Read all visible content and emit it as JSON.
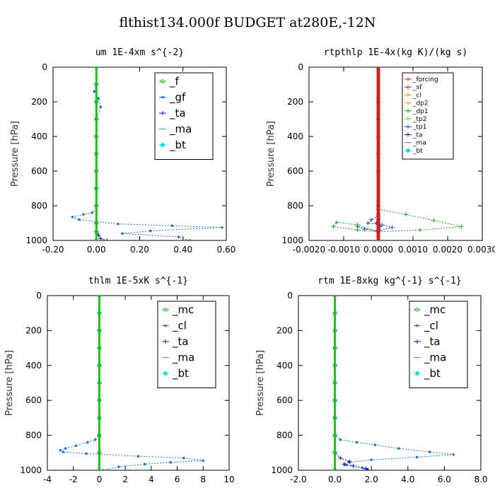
{
  "figure_title": "flthist134.000f  BUDGET at280E,-12N",
  "chart_data": [
    {
      "type": "line",
      "title": "um   1E-4xm s^{-2}",
      "xlabel": "",
      "ylabel": "Pressure [hPa]",
      "xlim": [
        -0.2,
        0.6
      ],
      "ylim": [
        1000,
        0
      ],
      "xticks": [
        "-0.20",
        "0.00",
        "0.20",
        "0.40",
        "0.60"
      ],
      "xtick_values": [
        -0.2,
        0.0,
        0.2,
        0.4,
        0.6
      ],
      "yticks": [
        "0",
        "200",
        "400",
        "600",
        "800",
        "1000"
      ],
      "ytick_values": [
        0,
        200,
        400,
        600,
        800,
        1000
      ],
      "grid": false,
      "legend_position": "top-right",
      "legend_small": false,
      "series": [
        {
          "name": "_f",
          "color": "#22bb22",
          "marker": "circle",
          "x": [
            0,
            0,
            0,
            0,
            0,
            0,
            0,
            0,
            0,
            0,
            0,
            0
          ],
          "y": [
            0,
            100,
            200,
            300,
            400,
            500,
            600,
            700,
            800,
            900,
            950,
            1000
          ]
        },
        {
          "name": "_gf",
          "color": "#2277cc",
          "marker": "dot",
          "x": [
            0,
            0,
            -0.01,
            0.01,
            0.02,
            0.0,
            0,
            0,
            0,
            -0.02,
            -0.06,
            -0.11,
            -0.08,
            0.1,
            0.35,
            0.58,
            0.25,
            0.12,
            0.38,
            0.43
          ],
          "y": [
            0,
            100,
            140,
            180,
            230,
            300,
            500,
            700,
            820,
            840,
            850,
            865,
            880,
            905,
            915,
            925,
            945,
            960,
            980,
            1000
          ]
        },
        {
          "name": "_ta",
          "color": "#1111aa",
          "marker": "plus",
          "x": [
            0,
            0,
            0,
            0,
            0,
            0.01,
            0.02,
            0.05
          ],
          "y": [
            0,
            500,
            800,
            900,
            950,
            970,
            990,
            1000
          ]
        },
        {
          "name": "_ma",
          "color": "#44aacc",
          "marker": "dash",
          "x": [
            0,
            0,
            0,
            0
          ],
          "y": [
            0,
            500,
            900,
            1000
          ]
        },
        {
          "name": "_bt",
          "color": "#00dddd",
          "marker": "diamond",
          "x": [
            0,
            0,
            0,
            0,
            0,
            0,
            0,
            0,
            0,
            0,
            0,
            0
          ],
          "y": [
            0,
            100,
            200,
            300,
            400,
            500,
            600,
            700,
            800,
            900,
            950,
            1000
          ]
        }
      ]
    },
    {
      "type": "line",
      "title": "rtpthlp   1E-4x(kg K)/(kg s)",
      "xlabel": "",
      "ylabel": "Pressure [hPa]",
      "xlim": [
        -0.002,
        0.003
      ],
      "ylim": [
        1000,
        0
      ],
      "xticks": [
        "-0.0020",
        "-0.0010",
        "0.0000",
        "0.0010",
        "0.0020",
        "0.0030"
      ],
      "xtick_values": [
        -0.002,
        -0.001,
        0.0,
        0.001,
        0.002,
        0.003
      ],
      "yticks": [
        "0",
        "200",
        "400",
        "600",
        "800",
        "1000"
      ],
      "ytick_values": [
        0,
        200,
        400,
        600,
        800,
        1000
      ],
      "grid": false,
      "legend_position": "top-right",
      "legend_small": true,
      "series": [
        {
          "name": "_forcing",
          "color": "#cc2222",
          "marker": "plus",
          "x": [
            0,
            0,
            0,
            0,
            0,
            0,
            0,
            0
          ],
          "y": [
            0,
            200,
            400,
            600,
            800,
            900,
            950,
            1000
          ]
        },
        {
          "name": "_sf",
          "color": "#dd2222",
          "marker": "plus",
          "x": [
            0,
            0,
            0,
            0,
            0,
            0
          ],
          "y": [
            0,
            300,
            600,
            850,
            950,
            1000
          ]
        },
        {
          "name": "_cl",
          "color": "#ee9900",
          "marker": "plus",
          "x": [
            0,
            0,
            0,
            0,
            0
          ],
          "y": [
            0,
            400,
            800,
            950,
            1000
          ]
        },
        {
          "name": "_dp2",
          "color": "#ddbb00",
          "marker": "plus",
          "x": [
            0,
            0,
            0,
            0
          ],
          "y": [
            0,
            500,
            900,
            1000
          ]
        },
        {
          "name": "_dp1",
          "color": "#22aa22",
          "marker": "plus",
          "x": [
            0,
            0.0008,
            0.0016,
            0.0024,
            0.0012,
            0,
            -0.0006,
            -0.0012,
            -0.0013,
            -0.0006,
            0
          ],
          "y": [
            820,
            850,
            885,
            920,
            940,
            950,
            910,
            895,
            920,
            940,
            950
          ]
        },
        {
          "name": "_tp2",
          "color": "#66cc33",
          "marker": "plus",
          "x": [
            0,
            0,
            0,
            0
          ],
          "y": [
            0,
            500,
            900,
            1000
          ]
        },
        {
          "name": "_tp1",
          "color": "#2255cc",
          "marker": "plus",
          "x": [
            0,
            -0.0002,
            -0.0003,
            0.0001,
            0.0004,
            0,
            -0.0004,
            -0.0006,
            0
          ],
          "y": [
            860,
            880,
            900,
            910,
            925,
            945,
            935,
            920,
            950
          ]
        },
        {
          "name": "_ta",
          "color": "#1111aa",
          "marker": "plus",
          "x": [
            0,
            -5e-05,
            5e-05,
            0
          ],
          "y": [
            880,
            900,
            920,
            940
          ]
        },
        {
          "name": "_ma",
          "color": "#44aacc",
          "marker": "dash",
          "x": [
            0,
            0,
            0
          ],
          "y": [
            0,
            500,
            1000
          ]
        },
        {
          "name": "_bt",
          "color": "#00dddd",
          "marker": "diamond",
          "x": [
            0,
            0,
            0
          ],
          "y": [
            0,
            500,
            1000
          ]
        }
      ]
    },
    {
      "type": "line",
      "title": "thlm   1E-5xK s^{-1}",
      "xlabel": "",
      "ylabel": "Pressure [hPa]",
      "xlim": [
        -4,
        10
      ],
      "ylim": [
        1000,
        0
      ],
      "xticks": [
        "-4",
        "-2",
        "0",
        "2",
        "4",
        "6",
        "8",
        "10"
      ],
      "xtick_values": [
        -4,
        -2,
        0,
        2,
        4,
        6,
        8,
        10
      ],
      "yticks": [
        "0",
        "200",
        "400",
        "600",
        "800",
        "1000"
      ],
      "ytick_values": [
        0,
        200,
        400,
        600,
        800,
        1000
      ],
      "grid": false,
      "legend_position": "top-right",
      "legend_small": false,
      "series": [
        {
          "name": "_mc",
          "color": "#22bb22",
          "marker": "circle",
          "x": [
            0,
            0,
            0,
            0,
            0,
            0,
            0,
            0,
            0,
            0,
            0
          ],
          "y": [
            0,
            100,
            200,
            300,
            400,
            500,
            600,
            700,
            800,
            900,
            1000
          ]
        },
        {
          "name": "_cl",
          "color": "#2277cc",
          "marker": "dot",
          "x": [
            0,
            0,
            -0.3,
            -0.9,
            -1.8,
            -2.6,
            -3.0,
            -2.8,
            -1.0,
            3.0,
            6.5,
            8.0,
            5.5,
            3.5,
            1.5,
            0.3
          ],
          "y": [
            0,
            800,
            825,
            840,
            860,
            875,
            885,
            895,
            905,
            920,
            930,
            945,
            955,
            965,
            980,
            1000
          ]
        },
        {
          "name": "_ta",
          "color": "#1111aa",
          "marker": "plus",
          "x": [
            0,
            0,
            0,
            0
          ],
          "y": [
            0,
            500,
            900,
            1000
          ]
        },
        {
          "name": "_ma",
          "color": "#44aacc",
          "marker": "dash",
          "x": [
            0,
            0,
            0,
            0
          ],
          "y": [
            0,
            500,
            900,
            1000
          ]
        },
        {
          "name": "_bt",
          "color": "#00dddd",
          "marker": "diamond",
          "x": [
            0,
            0,
            0,
            0,
            0,
            0,
            0,
            0,
            0,
            0,
            0
          ],
          "y": [
            0,
            100,
            200,
            300,
            400,
            500,
            600,
            700,
            800,
            900,
            1000
          ]
        }
      ]
    },
    {
      "type": "line",
      "title": "rtm   1E-8xkg kg^{-1} s^{-1}",
      "xlabel": "",
      "ylabel": "Pressure [hPa]",
      "xlim": [
        -2,
        8
      ],
      "ylim": [
        1000,
        0
      ],
      "xticks": [
        "-2.0",
        "0.0",
        "2.0",
        "4.0",
        "6.0",
        "8.0"
      ],
      "xtick_values": [
        -2,
        0,
        2,
        4,
        6,
        8
      ],
      "yticks": [
        "0",
        "200",
        "400",
        "600",
        "800",
        "1000"
      ],
      "ytick_values": [
        0,
        200,
        400,
        600,
        800,
        1000
      ],
      "grid": false,
      "legend_position": "top-right",
      "legend_small": false,
      "series": [
        {
          "name": "_mc",
          "color": "#22bb22",
          "marker": "circle",
          "x": [
            0,
            0,
            0,
            0,
            0,
            0,
            0,
            0,
            0,
            0,
            0
          ],
          "y": [
            0,
            100,
            200,
            300,
            400,
            500,
            600,
            700,
            800,
            900,
            1000
          ]
        },
        {
          "name": "_cl",
          "color": "#2277cc",
          "marker": "dot",
          "x": [
            0,
            0,
            0.3,
            1.2,
            2.2,
            3.5,
            5.2,
            6.5,
            4.5,
            2.0,
            0.8,
            0.6,
            1.5,
            1.8,
            1.6
          ],
          "y": [
            0,
            800,
            825,
            840,
            855,
            875,
            895,
            910,
            925,
            940,
            955,
            970,
            985,
            995,
            1000
          ]
        },
        {
          "name": "_ta",
          "color": "#1111aa",
          "marker": "plus",
          "x": [
            0,
            0,
            0.3,
            0.8,
            0.5,
            1.0,
            1.7,
            1.8
          ],
          "y": [
            0,
            900,
            930,
            950,
            965,
            975,
            990,
            1000
          ]
        },
        {
          "name": "_ma",
          "color": "#44aacc",
          "marker": "dash",
          "x": [
            0,
            0,
            0,
            0
          ],
          "y": [
            0,
            500,
            900,
            1000
          ]
        },
        {
          "name": "_bt",
          "color": "#00dddd",
          "marker": "diamond",
          "x": [
            0,
            0,
            0,
            0,
            0,
            0,
            0,
            0,
            0,
            0,
            0
          ],
          "y": [
            0,
            100,
            200,
            300,
            400,
            500,
            600,
            700,
            800,
            900,
            1000
          ]
        }
      ]
    }
  ]
}
